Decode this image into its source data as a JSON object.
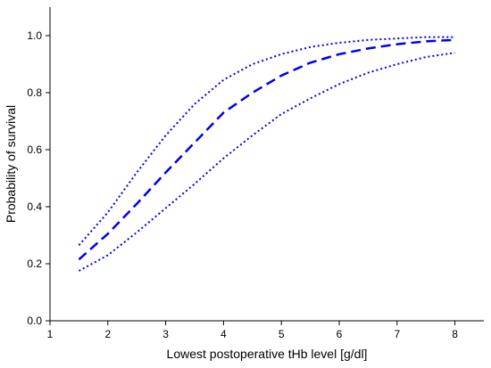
{
  "chart_data": {
    "type": "line",
    "xlabel": "Lowest postoperative tHb level [g/dl]",
    "ylabel": "Probability of survival",
    "xlim": [
      1,
      8.5
    ],
    "ylim": [
      0,
      1.1
    ],
    "xticks": [
      1,
      2,
      3,
      4,
      5,
      6,
      7,
      8
    ],
    "yticks": [
      0.0,
      0.2,
      0.4,
      0.6,
      0.8,
      1.0
    ],
    "ytick_labels": [
      "0.0",
      "0.2",
      "0.4",
      "0.6",
      "0.8",
      "1.0"
    ],
    "grid": false,
    "legend": "none",
    "color": "#0000EE",
    "x": [
      1.5,
      2.0,
      2.5,
      3.0,
      3.5,
      4.0,
      4.5,
      5.0,
      5.5,
      6.0,
      6.5,
      7.0,
      7.5,
      8.0
    ],
    "series": [
      {
        "line_style": "dotted",
        "values": [
          0.265,
          0.38,
          0.52,
          0.65,
          0.76,
          0.845,
          0.9,
          0.935,
          0.96,
          0.975,
          0.985,
          0.99,
          0.995,
          0.995
        ]
      },
      {
        "line_style": "dashed",
        "values": [
          0.215,
          0.305,
          0.41,
          0.52,
          0.625,
          0.73,
          0.8,
          0.86,
          0.905,
          0.935,
          0.955,
          0.97,
          0.98,
          0.985
        ]
      },
      {
        "line_style": "dotted",
        "values": [
          0.175,
          0.23,
          0.31,
          0.395,
          0.48,
          0.57,
          0.65,
          0.725,
          0.78,
          0.83,
          0.87,
          0.9,
          0.925,
          0.94
        ]
      }
    ]
  }
}
